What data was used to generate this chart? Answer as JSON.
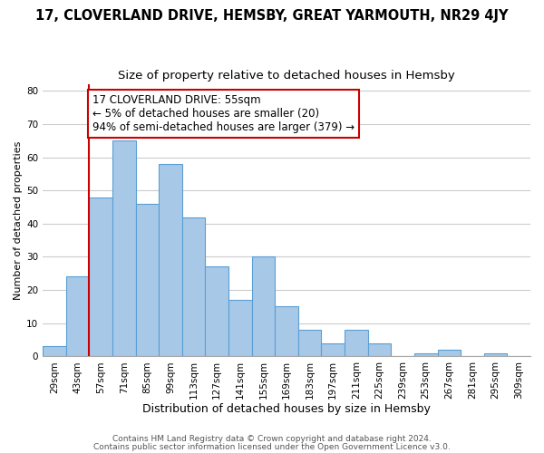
{
  "title": "17, CLOVERLAND DRIVE, HEMSBY, GREAT YARMOUTH, NR29 4JY",
  "subtitle": "Size of property relative to detached houses in Hemsby",
  "xlabel": "Distribution of detached houses by size in Hemsby",
  "ylabel": "Number of detached properties",
  "bar_labels": [
    "29sqm",
    "43sqm",
    "57sqm",
    "71sqm",
    "85sqm",
    "99sqm",
    "113sqm",
    "127sqm",
    "141sqm",
    "155sqm",
    "169sqm",
    "183sqm",
    "197sqm",
    "211sqm",
    "225sqm",
    "239sqm",
    "253sqm",
    "267sqm",
    "281sqm",
    "295sqm",
    "309sqm"
  ],
  "bar_values": [
    3,
    24,
    48,
    65,
    46,
    58,
    42,
    27,
    17,
    30,
    15,
    8,
    4,
    8,
    4,
    0,
    1,
    2,
    0,
    1,
    0
  ],
  "bar_color": "#a8c8e8",
  "bar_edge_color": "#5a9fd4",
  "vline_color": "#cc0000",
  "annotation_line1": "17 CLOVERLAND DRIVE: 55sqm",
  "annotation_line2": "← 5% of detached houses are smaller (20)",
  "annotation_line3": "94% of semi-detached houses are larger (379) →",
  "annotation_box_color": "#ffffff",
  "annotation_box_edge_color": "#cc0000",
  "ylim": [
    0,
    82
  ],
  "yticks": [
    0,
    10,
    20,
    30,
    40,
    50,
    60,
    70,
    80
  ],
  "footer_line1": "Contains HM Land Registry data © Crown copyright and database right 2024.",
  "footer_line2": "Contains public sector information licensed under the Open Government Licence v3.0.",
  "background_color": "#ffffff",
  "grid_color": "#cccccc",
  "title_fontsize": 10.5,
  "subtitle_fontsize": 9.5,
  "xlabel_fontsize": 9,
  "ylabel_fontsize": 8,
  "tick_fontsize": 7.5,
  "annotation_fontsize": 8.5,
  "footer_fontsize": 6.5
}
